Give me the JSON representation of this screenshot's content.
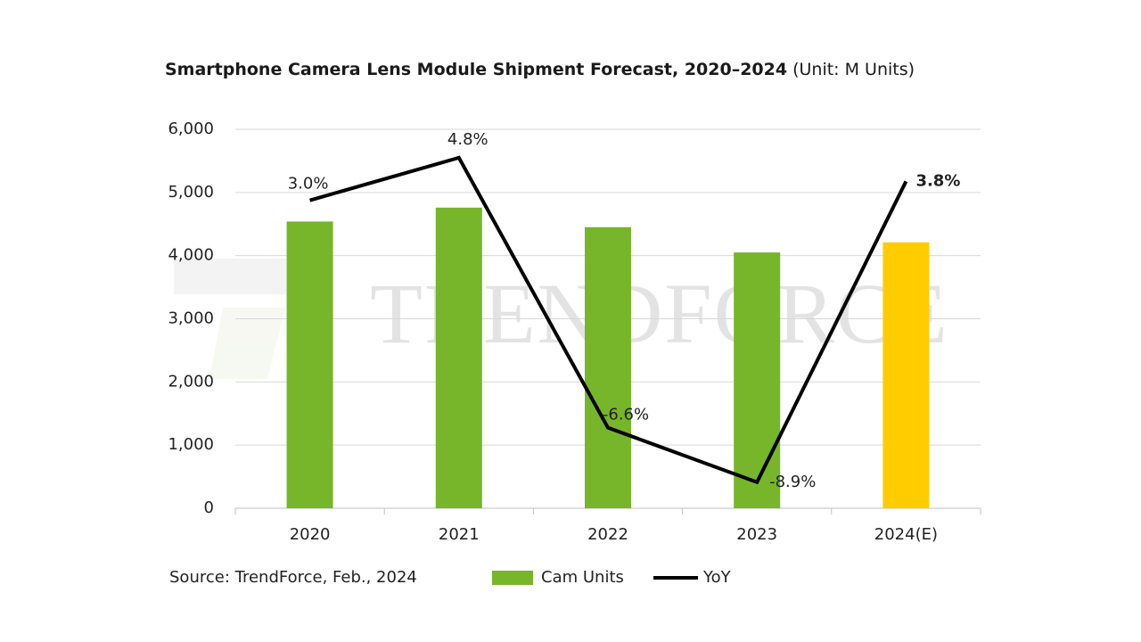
{
  "chart_data": {
    "type": "bar",
    "title": "Smartphone Camera Lens Module Shipment Forecast, 2020–2024",
    "unit": "(Unit: M Units)",
    "watermark": "TRENDFORCE",
    "source": "Source: TrendForce, Feb., 2024",
    "categories": [
      "2020",
      "2021",
      "2022",
      "2023",
      "2024(E)"
    ],
    "series": [
      {
        "name": "Cam Units",
        "type": "bar",
        "colors": [
          "#77b52a",
          "#77b52a",
          "#77b52a",
          "#77b52a",
          "#ffcc00"
        ],
        "values": [
          4540,
          4760,
          4450,
          4050,
          4210
        ]
      },
      {
        "name": "YoY",
        "type": "line",
        "axis": "y2",
        "color": "#000000",
        "values": [
          3.0,
          4.8,
          -6.6,
          -8.9,
          3.8
        ],
        "value_labels": [
          "3.0%",
          "4.8%",
          "-6.6%",
          "-8.9%",
          "3.8%"
        ]
      }
    ],
    "ylim": [
      0,
      6000
    ],
    "yticks": [
      0,
      {
        "value": 1000,
        "label": "1,000"
      },
      {
        "value": 2000,
        "label": "2,000"
      },
      {
        "value": 3000,
        "label": "3,000"
      },
      {
        "value": 4000,
        "label": "4,000"
      },
      {
        "value": 5000,
        "label": "5,000"
      },
      {
        "value": 6000,
        "label": "6,000"
      }
    ],
    "y2lim": [
      -10,
      6
    ],
    "grid": true,
    "legend": "bottom"
  }
}
